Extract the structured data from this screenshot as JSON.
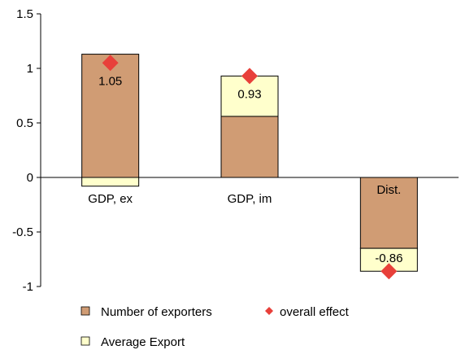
{
  "chart_data": {
    "type": "bar",
    "stacked": true,
    "categories": [
      "GDP, ex",
      "GDP, im",
      "Dist."
    ],
    "series": [
      {
        "name": "Number of exporters",
        "values": [
          1.13,
          0.56,
          -0.65
        ],
        "color": "#D09C74"
      },
      {
        "name": "Average Export",
        "values": [
          -0.08,
          0.37,
          -0.21
        ],
        "color": "#FFFFCC"
      }
    ],
    "overall_effect": {
      "name": "overall effect",
      "values": [
        1.05,
        0.93,
        -0.86
      ],
      "labels": [
        "1.05",
        "0.93",
        "-0.86"
      ],
      "color": "#E8403A",
      "marker": "diamond"
    },
    "y_ticks": [
      "1.5",
      "1",
      "0.5",
      "0",
      "-0.5",
      "-1"
    ],
    "ylim": [
      -1,
      1.5
    ],
    "grid": false,
    "legend_position": "bottom"
  }
}
